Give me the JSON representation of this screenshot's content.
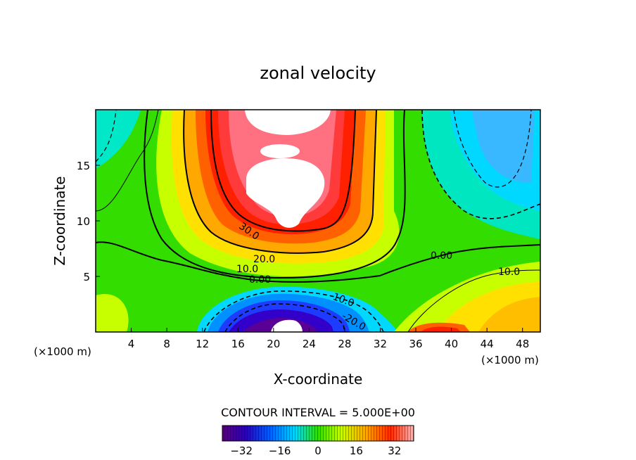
{
  "chart_data": {
    "type": "heatmap",
    "title": "zonal velocity",
    "xlabel": "X-coordinate",
    "ylabel": "Z-coordinate",
    "x_unit_label": "(×1000 m)",
    "x_unit_label_right": "(×1000 m)",
    "xlim": [
      0,
      50
    ],
    "ylim": [
      0,
      20
    ],
    "x_ticks": [
      "4",
      "8",
      "12",
      "16",
      "20",
      "24",
      "28",
      "32",
      "36",
      "40",
      "44",
      "48"
    ],
    "y_ticks": [
      "5",
      "10",
      "15"
    ],
    "contour_interval_text": "CONTOUR INTERVAL = 5.000E+00",
    "contour_labels": [
      "30.0",
      "20.0",
      "10.0",
      "0.00",
      "-10.0",
      "-20.0",
      "0.00",
      "10.0"
    ],
    "colorbar": {
      "range": [
        -40,
        40
      ],
      "tick_labels": [
        "−32",
        "−16",
        "0",
        "16",
        "32"
      ]
    },
    "features": [
      {
        "name": "positive jet core",
        "x": 20,
        "z": [
          10,
          20
        ],
        "value": 40
      },
      {
        "name": "negative core near bottom",
        "x": 21,
        "z": [
          0,
          3
        ],
        "value": -40
      },
      {
        "name": "positive region near bottom right",
        "x": 40,
        "z": [
          0,
          1
        ],
        "value": 25
      }
    ],
    "colors": {
      "strong_positive": "#ff0000",
      "positive": "#ffcc00",
      "zero": "#33dd00",
      "negative": "#00c8ff",
      "strong_negative": "#3300aa"
    }
  }
}
